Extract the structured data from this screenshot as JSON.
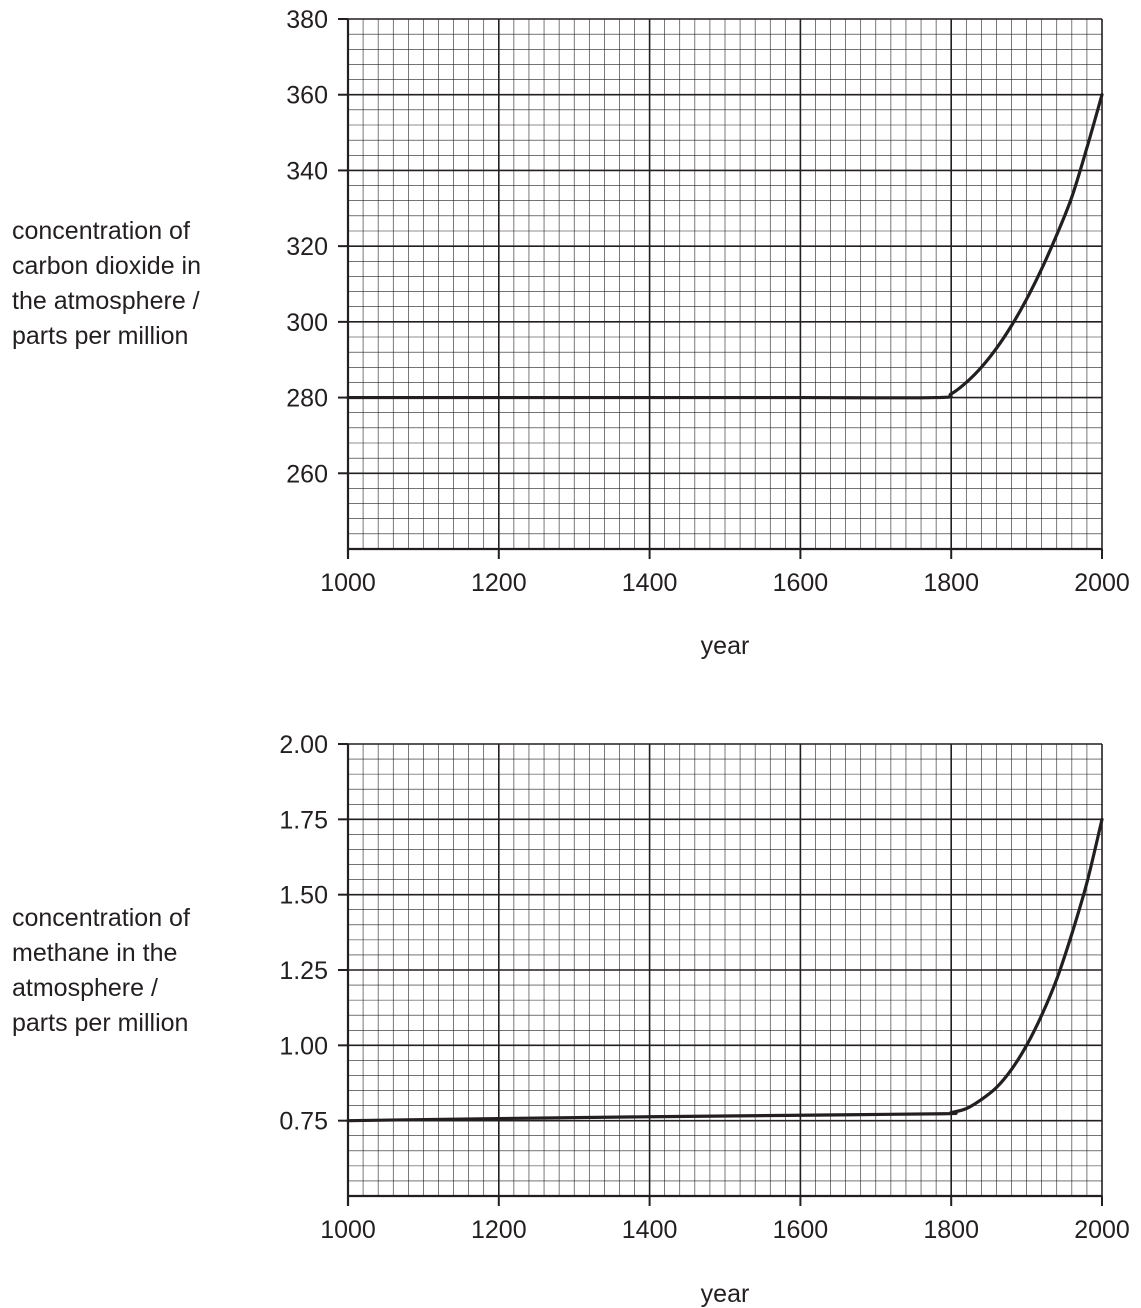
{
  "chart_data": [
    {
      "type": "line",
      "ylabel": "concentration of\ncarbon dioxide in\nthe atmosphere / \nparts per million",
      "xlabel": "year",
      "xlim": [
        1000,
        2000
      ],
      "ylim": [
        240,
        380
      ],
      "xticks": [
        "1000",
        "1200",
        "1400",
        "1600",
        "1800",
        "2000"
      ],
      "yticks": [
        "260",
        "280",
        "300",
        "320",
        "340",
        "360",
        "380"
      ],
      "grid": true,
      "series": [
        {
          "x": [
            1000,
            1200,
            1400,
            1600,
            1780,
            1800,
            1820,
            1840,
            1860,
            1880,
            1900,
            1920,
            1940,
            1960,
            1980,
            2000
          ],
          "y": [
            280,
            280,
            280,
            280,
            280,
            281,
            284,
            288,
            293,
            299,
            306,
            314,
            323,
            333,
            346,
            360
          ]
        }
      ]
    },
    {
      "type": "line",
      "ylabel": "concentration of\nmethane in the\natmosphere / \nparts per million",
      "xlabel": "year",
      "xlim": [
        1000,
        2000
      ],
      "ylim": [
        0.5,
        2.0
      ],
      "xticks": [
        "1000",
        "1200",
        "1400",
        "1600",
        "1800",
        "2000"
      ],
      "yticks": [
        "0.75",
        "1.00",
        "1.25",
        "1.50",
        "1.75",
        "2.00"
      ],
      "grid": true,
      "series": [
        {
          "x": [
            1000,
            1200,
            1400,
            1600,
            1790,
            1800,
            1820,
            1840,
            1860,
            1880,
            1900,
            1920,
            1940,
            1960,
            1980,
            2000
          ],
          "y": [
            0.75,
            0.757,
            0.763,
            0.768,
            0.773,
            0.777,
            0.79,
            0.82,
            0.86,
            0.92,
            1.0,
            1.1,
            1.22,
            1.37,
            1.54,
            1.75
          ]
        }
      ]
    }
  ]
}
